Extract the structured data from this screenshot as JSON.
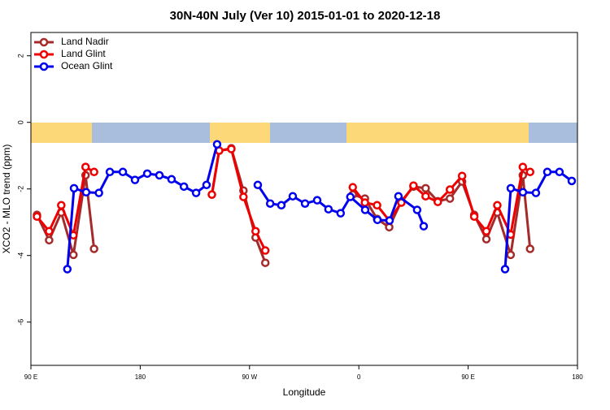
{
  "chart_data": {
    "type": "line",
    "title": "30N-40N July (Ver 10)   2015-01-01 to 2020-12-18",
    "x_label": "Longitude",
    "y_label": "XCO2 - MLO trend (ppm)",
    "xlim": [
      90,
      540
    ],
    "ylim": [
      -7.3,
      2.7
    ],
    "xticks": [
      {
        "value": 90,
        "label": "90 E"
      },
      {
        "value": 180,
        "label": "180"
      },
      {
        "value": 270,
        "label": "90 W"
      },
      {
        "value": 360,
        "label": "0"
      },
      {
        "value": 450,
        "label": "90 E"
      },
      {
        "value": 540,
        "label": "180"
      }
    ],
    "yticks": [
      2,
      0,
      -2,
      -4,
      -6
    ],
    "legend": "top-left",
    "series": [
      {
        "name": "Land Nadir",
        "color": "#a52a2a",
        "x": [
          95,
          105,
          115,
          125,
          135,
          142,
          null,
          239,
          245,
          255,
          265,
          275,
          283,
          null,
          355,
          365,
          375,
          385,
          395,
          405,
          415,
          425,
          435,
          445,
          455,
          465,
          474,
          485,
          495,
          501
        ],
        "values": [
          -2.78,
          -3.54,
          -2.71,
          -3.98,
          -1.59,
          -3.8,
          null,
          -2.17,
          -0.85,
          -0.78,
          -2.05,
          -3.46,
          -4.22,
          null,
          -2.17,
          -2.29,
          -2.9,
          -3.15,
          -2.37,
          -1.93,
          -1.98,
          -2.37,
          -2.29,
          -1.78,
          -2.78,
          -3.51,
          -2.71,
          -3.98,
          -1.59,
          -3.8
        ]
      },
      {
        "name": "Land Glint",
        "color": "#ee0000",
        "x": [
          95,
          105,
          115,
          125,
          135,
          142,
          null,
          239,
          245,
          255,
          265,
          275,
          283,
          null,
          355,
          365,
          375,
          385,
          395,
          405,
          415,
          425,
          435,
          445,
          455,
          465,
          474,
          485,
          495,
          501
        ],
        "values": [
          -2.83,
          -3.27,
          -2.49,
          -3.39,
          -1.34,
          -1.49,
          null,
          -2.17,
          -0.85,
          -0.8,
          -2.24,
          -3.27,
          -3.85,
          null,
          -1.95,
          -2.41,
          -2.49,
          -2.95,
          -2.41,
          -1.9,
          -2.22,
          -2.39,
          -2.02,
          -1.61,
          -2.83,
          -3.27,
          -2.49,
          -3.37,
          -1.34,
          -1.49
        ]
      },
      {
        "name": "Ocean Glint",
        "color": "#0000ee",
        "x": [
          120,
          125.5,
          135.5,
          146,
          155,
          165.7,
          175.7,
          185.8,
          195.8,
          205.8,
          216,
          226,
          234.6,
          243.3,
          null,
          276.8,
          287,
          296.2,
          305.6,
          315.7,
          325.7,
          335,
          345,
          353,
          365.2,
          375.3,
          385.3,
          392.6,
          408,
          413.4,
          null,
          480.4,
          485.1,
          495.1,
          505.8,
          515.2,
          525.2,
          535.3
        ],
        "values": [
          -4.41,
          -1.98,
          -2.1,
          -2.12,
          -1.49,
          -1.49,
          -1.73,
          -1.54,
          -1.59,
          -1.71,
          -1.93,
          -2.12,
          -1.88,
          -0.66,
          null,
          -1.88,
          -2.44,
          -2.49,
          -2.22,
          -2.44,
          -2.34,
          -2.61,
          -2.73,
          -2.24,
          -2.63,
          -2.93,
          -2.95,
          -2.22,
          -2.63,
          -3.12,
          null,
          -4.41,
          -1.98,
          -2.1,
          -2.12,
          -1.49,
          -1.49,
          -1.76
        ]
      }
    ]
  }
}
